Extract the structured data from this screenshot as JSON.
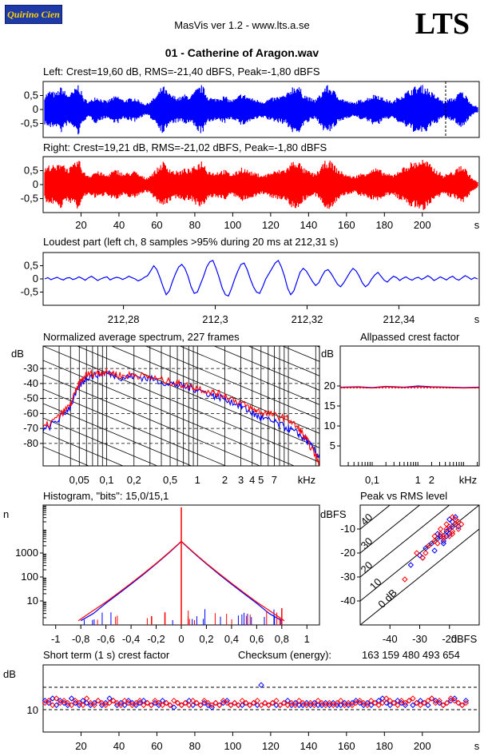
{
  "header": {
    "logo_text": "Quirino Cien",
    "app_line": "MasVis ver 1.2 - www.lts.a.se",
    "brand": "LTS",
    "file_title": "01 - Catherine of Aragon.wav"
  },
  "colors": {
    "left": "#0000ff",
    "right": "#ff0000",
    "grid": "#000000"
  },
  "chart_data": [
    {
      "id": "left-waveform",
      "type": "line",
      "title": "Left: Crest=19,60 dB, RMS=-21,40 dBFS, Peak=-1,80 dBFS",
      "ylim": [
        -1,
        1
      ],
      "yticks": [
        0.5,
        0,
        -0.5
      ],
      "ytick_labels": [
        "0,5",
        "0",
        "-0,5"
      ],
      "xlim": [
        0,
        230
      ],
      "marker_x": 212.31,
      "envelope": [
        0.55,
        0.7,
        0.6,
        0.85,
        0.55,
        0.65,
        0.95,
        0.4,
        0.3,
        0.5,
        0.4,
        0.3,
        0.45,
        0.5,
        0.35,
        0.4,
        0.45,
        0.3,
        0.2,
        0.35,
        0.55,
        0.9,
        0.6,
        0.5,
        0.45,
        0.55,
        0.5,
        0.75,
        0.9,
        0.5,
        0.4,
        0.45,
        0.5,
        0.35,
        0.4,
        0.6,
        0.5,
        0.4,
        0.35,
        0.3,
        0.4,
        0.45,
        0.5,
        0.55,
        0.85,
        0.9,
        0.6,
        0.45,
        0.35,
        0.55,
        0.9,
        0.8,
        0.55,
        0.4,
        0.3,
        0.25,
        0.35,
        0.4,
        0.5,
        0.6,
        0.45,
        0.35,
        0.3,
        0.5,
        0.6,
        0.75,
        0.85,
        0.9,
        0.8,
        0.6,
        0.45,
        0.3,
        0.4,
        0.45,
        0.7,
        0.5,
        0.2,
        0.1
      ]
    },
    {
      "id": "right-waveform",
      "type": "line",
      "title": "Right: Crest=19,21 dB, RMS=-21,02 dBFS, Peak=-1,80 dBFS",
      "ylim": [
        -1,
        1
      ],
      "yticks": [
        0.5,
        0,
        -0.5
      ],
      "ytick_labels": [
        "0,5",
        "0",
        "-0,5"
      ],
      "xlim": [
        0,
        230
      ],
      "xticks": [
        20,
        40,
        60,
        80,
        100,
        120,
        140,
        160,
        180,
        200
      ],
      "xunit": "s",
      "envelope": [
        0.6,
        0.75,
        0.65,
        0.9,
        0.6,
        0.7,
        0.95,
        0.45,
        0.35,
        0.5,
        0.45,
        0.35,
        0.5,
        0.55,
        0.4,
        0.45,
        0.5,
        0.35,
        0.25,
        0.4,
        0.6,
        0.85,
        0.65,
        0.5,
        0.5,
        0.6,
        0.55,
        0.75,
        0.9,
        0.55,
        0.45,
        0.5,
        0.55,
        0.4,
        0.45,
        0.65,
        0.55,
        0.45,
        0.4,
        0.35,
        0.45,
        0.5,
        0.55,
        0.6,
        0.85,
        0.9,
        0.6,
        0.5,
        0.4,
        0.6,
        0.9,
        0.85,
        0.6,
        0.45,
        0.35,
        0.3,
        0.4,
        0.45,
        0.55,
        0.6,
        0.5,
        0.4,
        0.35,
        0.55,
        0.65,
        0.8,
        0.85,
        0.95,
        0.85,
        0.65,
        0.5,
        0.35,
        0.45,
        0.5,
        0.75,
        0.55,
        0.25,
        0.1
      ]
    },
    {
      "id": "loudest-part",
      "type": "line",
      "title": "Loudest part (left  ch, 8 samples >95% during 20 ms at 212,31 s)",
      "ylim": [
        -1,
        1
      ],
      "yticks": [
        0.5,
        0,
        -0.5
      ],
      "ytick_labels": [
        "0,5",
        "0",
        "-0,5"
      ],
      "xlim": [
        212.2625,
        212.3575
      ],
      "xticks": [
        212.28,
        212.3,
        212.32,
        212.34
      ],
      "xtick_labels": [
        "212,28",
        "212,3",
        "212,32",
        "212,34"
      ],
      "xunit": "s",
      "values": [
        0.0,
        0.05,
        -0.03,
        0.02,
        0.06,
        0.0,
        -0.04,
        0.03,
        0.05,
        -0.02,
        0.01,
        0.08,
        0.02,
        -0.05,
        0.04,
        0.1,
        0.02,
        -0.06,
        0.0,
        0.05,
        0.08,
        -0.04,
        0.02,
        0.06,
        0.04,
        -0.02,
        0.03,
        0.1,
        0.05,
        0.0,
        -0.08,
        -0.02,
        0.06,
        0.12,
        0.3,
        0.5,
        0.35,
        0.05,
        -0.3,
        -0.6,
        -0.45,
        -0.1,
        0.2,
        0.45,
        0.55,
        0.4,
        0.1,
        -0.3,
        -0.55,
        -0.5,
        -0.2,
        0.1,
        0.45,
        0.65,
        0.7,
        0.4,
        0.05,
        -0.35,
        -0.6,
        -0.65,
        -0.35,
        0.0,
        0.3,
        0.55,
        0.6,
        0.35,
        0.0,
        -0.3,
        -0.5,
        -0.55,
        -0.3,
        0.0,
        0.2,
        0.4,
        0.6,
        0.7,
        0.45,
        0.1,
        -0.35,
        -0.6,
        -0.45,
        -0.1,
        0.25,
        0.4,
        0.3,
        0.1,
        -0.1,
        -0.25,
        -0.15,
        0.1,
        0.3,
        0.35,
        0.2,
        0.0,
        -0.2,
        -0.3,
        -0.15,
        0.05,
        0.25,
        0.4,
        0.3,
        0.1,
        -0.15,
        -0.3,
        -0.2,
        0.0,
        0.15,
        0.25,
        0.1,
        -0.05,
        -0.12,
        0.0,
        0.1,
        0.05,
        -0.06,
        0.02,
        0.08,
        0.0,
        -0.05,
        0.03,
        0.06,
        -0.02,
        0.04,
        0.12,
        0.05,
        -0.06,
        0.0,
        0.08,
        0.02,
        -0.04,
        0.05,
        0.1,
        0.0,
        -0.05,
        0.04,
        0.12,
        0.06,
        -0.02,
        0.05,
        0.0
      ]
    },
    {
      "id": "avg-spectrum",
      "type": "line",
      "title": "Normalized average spectrum, 227 frames",
      "ylabel": "dB",
      "ylim": [
        -95,
        -15
      ],
      "yticks": [
        -30,
        -40,
        -50,
        -60,
        -70,
        -80
      ],
      "ytick_labels": [
        "-30",
        "-40",
        "-50",
        "-60",
        "-70",
        "-80"
      ],
      "xscale": "log",
      "xlim": [
        0.02,
        22
      ],
      "xticks": [
        0.05,
        0.1,
        0.2,
        0.5,
        1,
        2,
        3,
        4,
        5,
        7
      ],
      "xtick_labels": [
        "0,05",
        "0,1",
        "0,2",
        "0,5",
        "1",
        "2",
        "3",
        "4",
        "5",
        "7"
      ],
      "xunit": "kHz",
      "series": [
        {
          "name": "left",
          "x": [
            0.02,
            0.03,
            0.04,
            0.05,
            0.06,
            0.08,
            0.1,
            0.15,
            0.2,
            0.3,
            0.5,
            0.7,
            1,
            1.5,
            2,
            3,
            4,
            5,
            7,
            10,
            13,
            16,
            20,
            22
          ],
          "values": [
            -72,
            -64,
            -55,
            -42,
            -36,
            -34,
            -33,
            -36,
            -35,
            -37,
            -40,
            -42,
            -44,
            -48,
            -50,
            -55,
            -60,
            -63,
            -66,
            -70,
            -74,
            -78,
            -86,
            -90
          ]
        },
        {
          "name": "right",
          "x": [
            0.02,
            0.03,
            0.04,
            0.05,
            0.06,
            0.08,
            0.1,
            0.15,
            0.2,
            0.3,
            0.5,
            0.7,
            1,
            1.5,
            2,
            3,
            4,
            5,
            7,
            10,
            13,
            16,
            20,
            22
          ],
          "values": [
            -70,
            -62,
            -54,
            -40,
            -34,
            -33,
            -32,
            -35,
            -34,
            -36,
            -39,
            -41,
            -43,
            -46,
            -48,
            -53,
            -57,
            -59,
            -61,
            -64,
            -70,
            -78,
            -88,
            -94
          ]
        }
      ]
    },
    {
      "id": "allpassed-crest",
      "type": "line",
      "title": "Allpassed crest factor",
      "ylabel": "dB",
      "ylim": [
        0,
        30
      ],
      "yticks": [
        5,
        10,
        15,
        20
      ],
      "ytick_labels": [
        "5",
        "10",
        "15",
        "20"
      ],
      "xscale": "log",
      "xlim": [
        0.02,
        22
      ],
      "xticks": [
        0.1,
        1,
        2
      ],
      "xtick_labels": [
        "0,1",
        "1",
        "2"
      ],
      "xunit": "kHz",
      "reference_db": 19.5,
      "series": [
        {
          "name": "left",
          "x": [
            0.02,
            0.05,
            0.1,
            0.2,
            0.5,
            1,
            2,
            5,
            10,
            22
          ],
          "values": [
            19.7,
            19.8,
            19.6,
            19.9,
            19.7,
            20.0,
            19.8,
            19.7,
            19.6,
            19.7
          ]
        },
        {
          "name": "right",
          "x": [
            0.02,
            0.05,
            0.1,
            0.2,
            0.5,
            1,
            2,
            5,
            10,
            22
          ],
          "values": [
            19.6,
            19.7,
            19.5,
            19.8,
            19.6,
            19.8,
            19.7,
            19.6,
            19.5,
            19.6
          ]
        }
      ]
    },
    {
      "id": "histogram",
      "type": "line",
      "title": "Histogram, \"bits\": 15,0/15,1",
      "ylabel": "n",
      "yscale": "log",
      "ylim": [
        1,
        100000
      ],
      "yticks": [
        10,
        100,
        1000
      ],
      "ytick_labels": [
        "10",
        "100",
        "1000"
      ],
      "xlim": [
        -1.1,
        1.1
      ],
      "xticks": [
        -1,
        -0.8,
        -0.6,
        -0.4,
        -0.2,
        0,
        0.2,
        0.4,
        0.6,
        0.8,
        1
      ],
      "xtick_labels": [
        "-1",
        "-0,8",
        "-0,6",
        "-0,4",
        "-0,2",
        "0",
        "0,2",
        "0,4",
        "0,6",
        "0,8",
        "1"
      ],
      "series": [
        {
          "name": "left",
          "x": [
            -0.8,
            -0.7,
            -0.6,
            -0.5,
            -0.4,
            -0.3,
            -0.2,
            -0.1,
            0,
            0.1,
            0.2,
            0.3,
            0.4,
            0.5,
            0.6,
            0.7,
            0.8
          ],
          "values": [
            1.5,
            3,
            8,
            20,
            50,
            130,
            350,
            1000,
            3000,
            1000,
            350,
            130,
            50,
            20,
            8,
            3,
            1.5
          ]
        },
        {
          "name": "right",
          "x": [
            -0.82,
            -0.7,
            -0.6,
            -0.5,
            -0.4,
            -0.3,
            -0.2,
            -0.1,
            0,
            0.1,
            0.2,
            0.3,
            0.4,
            0.5,
            0.6,
            0.7,
            0.82
          ],
          "values": [
            1.5,
            4,
            9,
            22,
            55,
            140,
            370,
            1050,
            3100,
            1050,
            370,
            140,
            55,
            22,
            9,
            4,
            1.5
          ]
        }
      ],
      "spikes": [
        {
          "x": 0,
          "value": 80000
        },
        {
          "x": 0.8,
          "value": 5
        }
      ]
    },
    {
      "id": "peak-vs-rms",
      "type": "scatter",
      "title": "Peak vs RMS level",
      "ylabel": "dBFS",
      "xlabel": "dBFS",
      "xlim": [
        -50,
        -10
      ],
      "ylim": [
        -50,
        0
      ],
      "xticks": [
        -40,
        -30,
        -20
      ],
      "xtick_labels": [
        "-40",
        "-30",
        "-20"
      ],
      "yticks": [
        -10,
        -20,
        -30,
        -40
      ],
      "ytick_labels": [
        "-10",
        "-20",
        "-30",
        "-40"
      ],
      "diagonal_labels": [
        "40",
        "30",
        "20",
        "10",
        "0 dB"
      ],
      "series": [
        {
          "name": "left",
          "x": [
            -33,
            -30,
            -28,
            -26,
            -25,
            -24,
            -23,
            -22,
            -21,
            -20,
            -20,
            -19,
            -18,
            -19,
            -21,
            -22,
            -24,
            -27,
            -29,
            -20,
            -18,
            -17
          ],
          "y": [
            -25,
            -21,
            -18,
            -16,
            -19,
            -14,
            -13,
            -15,
            -11,
            -10,
            -12,
            -9,
            -8,
            -7,
            -13,
            -16,
            -12,
            -17,
            -22,
            -6,
            -5,
            -9
          ]
        },
        {
          "name": "right",
          "x": [
            -35,
            -31,
            -29,
            -27,
            -25,
            -24,
            -23,
            -22,
            -21,
            -20,
            -19,
            -18,
            -18,
            -17,
            -19,
            -20,
            -22,
            -23,
            -25,
            -28,
            -21,
            -19,
            -17,
            -16
          ],
          "y": [
            -31,
            -20,
            -22,
            -17,
            -15,
            -16,
            -12,
            -13,
            -10,
            -9,
            -11,
            -8,
            -6,
            -7,
            -5,
            -13,
            -14,
            -10,
            -13,
            -20,
            -8,
            -12,
            -10,
            -8
          ]
        }
      ]
    },
    {
      "id": "short-term-crest",
      "type": "scatter",
      "title": "Short term (1 s) crest factor",
      "checksum_label": "Checksum (energy):",
      "checksum_value": "163 159 480 493 654",
      "ylabel": "dB",
      "ylim": [
        0,
        30
      ],
      "yticks": [
        10
      ],
      "ytick_labels": [
        "10"
      ],
      "dashed_y": [
        10,
        20
      ],
      "xlim": [
        0,
        230
      ],
      "xticks": [
        20,
        40,
        60,
        80,
        100,
        120,
        140,
        160,
        180,
        200
      ],
      "xunit": "s",
      "series": [
        {
          "name": "left",
          "values": [
            14,
            13,
            15,
            12,
            14,
            13,
            12,
            15,
            13,
            12,
            14,
            13,
            12,
            13,
            14,
            12,
            13,
            15,
            14,
            12,
            13,
            12,
            14,
            13,
            12,
            13,
            14,
            13,
            12,
            13,
            12,
            14,
            13,
            12,
            11,
            13,
            12,
            13,
            14,
            12,
            13,
            12,
            13,
            12,
            11,
            13,
            12,
            13,
            14,
            12,
            13,
            12,
            12,
            13,
            12,
            13,
            12,
            21,
            13,
            12,
            13,
            12,
            12,
            13,
            14,
            12,
            13,
            12,
            12,
            13,
            12,
            13,
            12,
            12,
            13,
            12,
            13,
            12,
            12,
            13,
            12,
            13,
            14,
            13,
            12,
            13,
            12,
            13,
            14,
            15,
            13,
            12,
            13,
            14,
            13,
            12,
            14,
            12,
            13,
            14,
            13,
            12,
            15,
            14,
            13,
            12,
            13,
            14,
            15,
            13,
            12,
            14
          ]
        },
        {
          "name": "right",
          "values": [
            13,
            14,
            12,
            15,
            13,
            14,
            13,
            12,
            14,
            13,
            12,
            15,
            13,
            12,
            14,
            13,
            12,
            13,
            14,
            13,
            12,
            14,
            13,
            12,
            13,
            14,
            12,
            13,
            12,
            14,
            13,
            12,
            13,
            12,
            14,
            13,
            12,
            13,
            12,
            14,
            13,
            12,
            14,
            13,
            12,
            13,
            12,
            14,
            13,
            12,
            13,
            12,
            14,
            13,
            12,
            13,
            14,
            12,
            13,
            12,
            13,
            14,
            12,
            13,
            12,
            13,
            12,
            14,
            13,
            12,
            13,
            12,
            14,
            13,
            12,
            13,
            12,
            13,
            14,
            12,
            13,
            12,
            13,
            14,
            13,
            12,
            14,
            13,
            12,
            13,
            15,
            14,
            13,
            12,
            14,
            13,
            14,
            15,
            13,
            12,
            13,
            14,
            15,
            13,
            14,
            12,
            13,
            15,
            14,
            13,
            12,
            13
          ]
        }
      ]
    }
  ]
}
